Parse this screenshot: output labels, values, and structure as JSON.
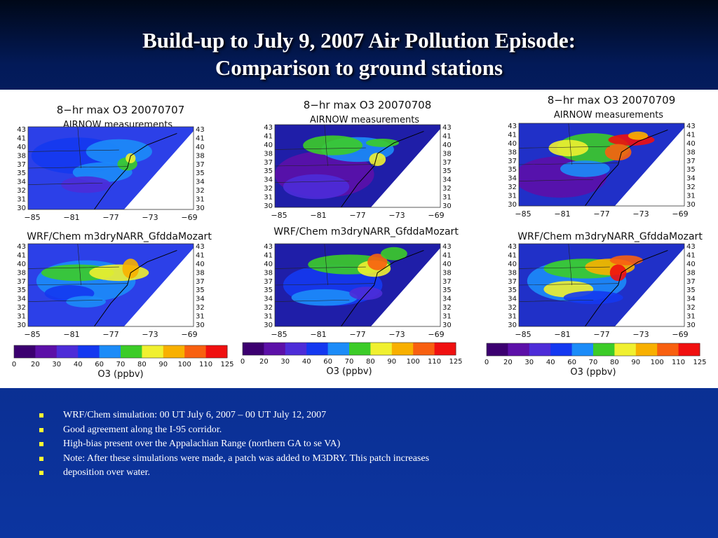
{
  "title_lines": [
    "Build-up to July 9, 2007 Air Pollution Episode:",
    "Comparison to ground stations"
  ],
  "columns": [
    {
      "obs_title": "8−hr max O3 20070707",
      "obs_subtitle": "AIRNOW measurements",
      "model_title": "WRF/Chem m3dryNARR_GfddaMozart"
    },
    {
      "obs_title": "8−hr max O3 20070708",
      "obs_subtitle": "AIRNOW measurements",
      "model_title": "WRF/Chem m3dryNARR_GfddaMozart"
    },
    {
      "obs_title": "8−hr max O3 20070709",
      "obs_subtitle": "AIRNOW measurements",
      "model_title": "WRF/Chem m3dryNARR_GfddaMozart"
    }
  ],
  "lat_ticks": [
    "43",
    "41",
    "40",
    "38",
    "37",
    "35",
    "34",
    "32",
    "31",
    "30"
  ],
  "lon_ticks": [
    "−85",
    "−81",
    "−77",
    "−73",
    "−69"
  ],
  "colorbar": {
    "label": "O3 (ppbv)",
    "ticks": [
      "0",
      "20",
      "30",
      "40",
      "60",
      "70",
      "80",
      "90",
      "100",
      "110",
      "125"
    ],
    "colors": [
      "#3c0070",
      "#5c10a8",
      "#4d2cd8",
      "#1438f0",
      "#1c8cf8",
      "#3ccc28",
      "#f0f030",
      "#f8b000",
      "#f86010",
      "#f01010"
    ]
  },
  "bullets": [
    "WRF/Chem simulation: 00 UT July 6, 2007  – 00 UT July 12, 2007",
    "Good agreement along the I-95 corridor.",
    "High-bias present over the Appalachian Range (northern GA to se VA)",
    "Note: After these simulations were made, a patch was added to M3DRY.  This patch increases",
    "deposition over water."
  ],
  "accent_colors": {
    "background": "#0a2d8e",
    "title_text": "#ffffff",
    "bullet_marker": "#ffff33"
  }
}
